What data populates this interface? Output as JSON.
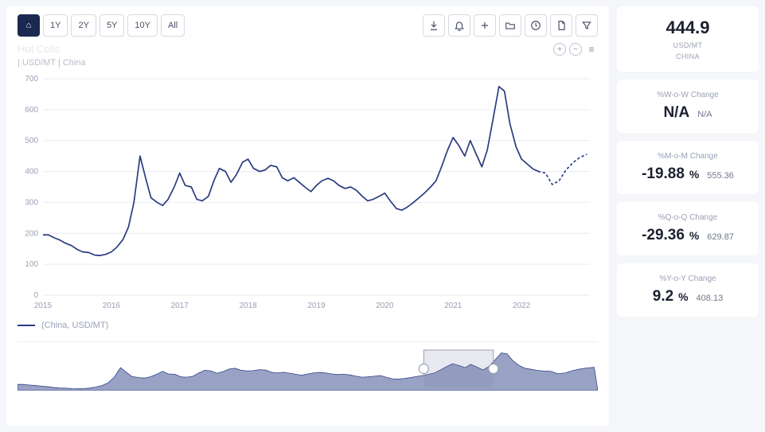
{
  "toolbar": {
    "ranges": [
      "1Y",
      "2Y",
      "5Y",
      "10Y",
      "All"
    ],
    "active_index": -1,
    "home_icon": "⌂"
  },
  "right_icons": [
    "download",
    "bell",
    "plus",
    "folder",
    "clock",
    "doc",
    "filter"
  ],
  "series": {
    "title": "Hot Coils",
    "subtitle": "| USD/MT | China",
    "legend": "(China, USD/MT)"
  },
  "mini_controls": {
    "a": "+",
    "b": "−",
    "c": "≡"
  },
  "chart": {
    "type": "line",
    "line_color": "#2b3c80",
    "dotted_color": "#2b3c80",
    "background_color": "#ffffff",
    "grid_color": "#e9ebf2",
    "axis_text_color": "#9aa0b5",
    "axis_font_size": 10,
    "ylim": [
      0,
      700
    ],
    "ytick_step": 100,
    "xticks": [
      "2015",
      "2016",
      "2017",
      "2018",
      "2019",
      "2020",
      "2021",
      "2022"
    ],
    "x_start": 2015.0,
    "x_end": 2023.0,
    "line_width": 1.7,
    "data": [
      [
        2015.0,
        195
      ],
      [
        2015.08,
        195
      ],
      [
        2015.17,
        185
      ],
      [
        2015.25,
        178
      ],
      [
        2015.33,
        168
      ],
      [
        2015.42,
        160
      ],
      [
        2015.5,
        148
      ],
      [
        2015.58,
        140
      ],
      [
        2015.67,
        138
      ],
      [
        2015.75,
        130
      ],
      [
        2015.83,
        128
      ],
      [
        2015.92,
        132
      ],
      [
        2016.0,
        140
      ],
      [
        2016.08,
        155
      ],
      [
        2016.17,
        180
      ],
      [
        2016.25,
        220
      ],
      [
        2016.33,
        300
      ],
      [
        2016.42,
        450
      ],
      [
        2016.5,
        380
      ],
      [
        2016.58,
        315
      ],
      [
        2016.67,
        300
      ],
      [
        2016.75,
        290
      ],
      [
        2016.83,
        310
      ],
      [
        2016.92,
        350
      ],
      [
        2017.0,
        395
      ],
      [
        2017.08,
        355
      ],
      [
        2017.17,
        350
      ],
      [
        2017.25,
        310
      ],
      [
        2017.33,
        305
      ],
      [
        2017.42,
        320
      ],
      [
        2017.5,
        370
      ],
      [
        2017.58,
        410
      ],
      [
        2017.67,
        400
      ],
      [
        2017.75,
        365
      ],
      [
        2017.83,
        390
      ],
      [
        2017.92,
        430
      ],
      [
        2018.0,
        440
      ],
      [
        2018.08,
        410
      ],
      [
        2018.17,
        400
      ],
      [
        2018.25,
        405
      ],
      [
        2018.33,
        420
      ],
      [
        2018.42,
        415
      ],
      [
        2018.5,
        380
      ],
      [
        2018.58,
        370
      ],
      [
        2018.67,
        380
      ],
      [
        2018.75,
        365
      ],
      [
        2018.83,
        350
      ],
      [
        2018.92,
        335
      ],
      [
        2019.0,
        355
      ],
      [
        2019.08,
        370
      ],
      [
        2019.17,
        378
      ],
      [
        2019.25,
        370
      ],
      [
        2019.33,
        355
      ],
      [
        2019.42,
        345
      ],
      [
        2019.5,
        350
      ],
      [
        2019.58,
        340
      ],
      [
        2019.67,
        320
      ],
      [
        2019.75,
        305
      ],
      [
        2019.83,
        310
      ],
      [
        2019.92,
        320
      ],
      [
        2020.0,
        330
      ],
      [
        2020.08,
        305
      ],
      [
        2020.17,
        280
      ],
      [
        2020.25,
        275
      ],
      [
        2020.33,
        285
      ],
      [
        2020.42,
        300
      ],
      [
        2020.5,
        315
      ],
      [
        2020.58,
        330
      ],
      [
        2020.67,
        350
      ],
      [
        2020.75,
        370
      ],
      [
        2020.83,
        415
      ],
      [
        2020.92,
        470
      ],
      [
        2021.0,
        510
      ],
      [
        2021.08,
        485
      ],
      [
        2021.17,
        450
      ],
      [
        2021.25,
        500
      ],
      [
        2021.33,
        460
      ],
      [
        2021.42,
        415
      ],
      [
        2021.5,
        470
      ],
      [
        2021.58,
        565
      ],
      [
        2021.67,
        675
      ],
      [
        2021.75,
        660
      ],
      [
        2021.83,
        555
      ],
      [
        2021.92,
        480
      ],
      [
        2022.0,
        440
      ],
      [
        2022.08,
        425
      ],
      [
        2022.17,
        408
      ],
      [
        2022.25,
        400
      ]
    ],
    "forecast": [
      [
        2022.25,
        400
      ],
      [
        2022.35,
        395
      ],
      [
        2022.45,
        358
      ],
      [
        2022.55,
        370
      ],
      [
        2022.65,
        405
      ],
      [
        2022.75,
        428
      ],
      [
        2022.85,
        445
      ],
      [
        2022.95,
        455
      ]
    ]
  },
  "brush": {
    "fill_color": "#33458a",
    "opacity": 0.5,
    "handle_color": "#ffffff",
    "handle_border": "#9aa0b5",
    "selection": [
      0.7,
      0.82
    ]
  },
  "summary": {
    "value": "444.9",
    "unit": "USD/MT",
    "region": "CHINA"
  },
  "stats": [
    {
      "label": "%W-o-W Change",
      "value": "N/A",
      "secondary": "N/A"
    },
    {
      "label": "%M-o-M Change",
      "value": "-19.88",
      "pct": "%",
      "secondary": "555.36"
    },
    {
      "label": "%Q-o-Q Change",
      "value": "-29.36",
      "pct": "%",
      "secondary": "629.87"
    },
    {
      "label": "%Y-o-Y Change",
      "value": "9.2",
      "pct": "%",
      "secondary": "408.13"
    }
  ]
}
